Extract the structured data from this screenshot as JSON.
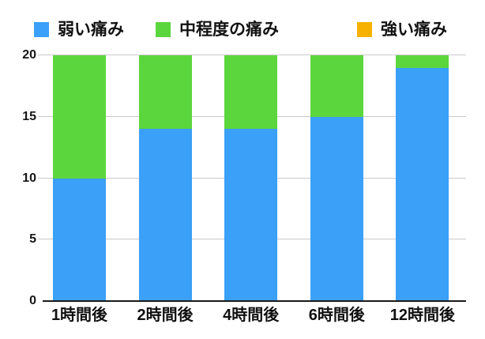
{
  "legend": {
    "items": [
      {
        "label": "弱い痛み",
        "color": "#3AA0F8"
      },
      {
        "label": "中程度の痛み",
        "color": "#5CD63D"
      },
      {
        "label": "強い痛み",
        "color": "#F7B100"
      }
    ]
  },
  "chart_data": {
    "type": "bar",
    "stacked": true,
    "title": "",
    "xlabel": "",
    "ylabel": "",
    "categories": [
      "1時間後",
      "2時間後",
      "4時間後",
      "6時間後",
      "12時間後"
    ],
    "series": [
      {
        "name": "弱い痛み",
        "color": "#3AA0F8",
        "values": [
          10,
          14,
          14,
          15,
          19
        ]
      },
      {
        "name": "中程度の痛み",
        "color": "#5CD63D",
        "values": [
          10,
          6,
          6,
          5,
          1
        ]
      },
      {
        "name": "強い痛み",
        "color": "#F7B100",
        "values": [
          0,
          0,
          0,
          0,
          0
        ]
      }
    ],
    "ylim": [
      0,
      20
    ],
    "yticks": [
      0,
      5,
      10,
      15,
      20
    ],
    "grid": true,
    "legend_position": "top"
  },
  "colors": {
    "gridline": "#c9c9c9",
    "axis_line": "#1a1a1a",
    "text": "#121212",
    "background": "#ffffff"
  }
}
